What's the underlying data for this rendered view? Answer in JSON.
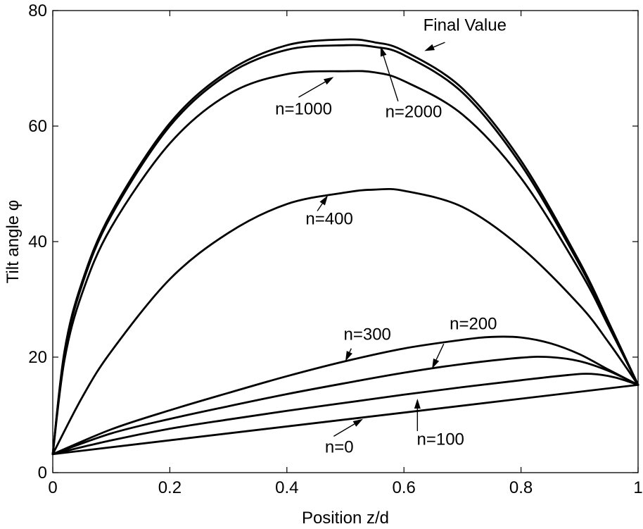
{
  "chart_data": {
    "type": "line",
    "title": "",
    "xlabel": "Position z/d",
    "ylabel": "Tilt angle φ",
    "xlim": [
      0,
      1
    ],
    "ylim": [
      0,
      80
    ],
    "xticks": [
      0,
      0.2,
      0.4,
      0.6,
      0.8,
      1
    ],
    "yticks": [
      0,
      20,
      40,
      60,
      80
    ],
    "xtick_labels": [
      "0",
      "0.2",
      "0.4",
      "0.6",
      "0.8",
      "1"
    ],
    "ytick_labels": [
      "0",
      "20",
      "40",
      "60",
      "80"
    ],
    "grid": false,
    "line_color": "#000000",
    "boundary": {
      "y_at_0": 3.2,
      "y_at_1": 15.2
    },
    "series": [
      {
        "key": "final",
        "x": [
          0,
          0.02,
          0.05,
          0.1,
          0.2,
          0.3,
          0.4,
          0.5,
          0.55,
          0.6,
          0.7,
          0.8,
          0.9,
          0.95,
          1
        ],
        "values": [
          3.2,
          21,
          33,
          45,
          60.5,
          69.5,
          74,
          75,
          74.5,
          73,
          66.5,
          54,
          36.5,
          26,
          15.2
        ]
      },
      {
        "key": "n2000",
        "x": [
          0,
          0.02,
          0.05,
          0.1,
          0.2,
          0.3,
          0.4,
          0.5,
          0.55,
          0.6,
          0.7,
          0.8,
          0.9,
          0.95,
          1
        ],
        "values": [
          3.2,
          20.5,
          32.5,
          44.5,
          60,
          69,
          73.2,
          74,
          73.7,
          72.3,
          65.8,
          53.3,
          36,
          25.8,
          15.2
        ]
      },
      {
        "key": "n1000",
        "x": [
          0,
          0.02,
          0.05,
          0.1,
          0.2,
          0.3,
          0.4,
          0.5,
          0.55,
          0.6,
          0.7,
          0.8,
          0.9,
          0.95,
          1
        ],
        "values": [
          3.2,
          19.5,
          31,
          42.5,
          57,
          65.5,
          69,
          69.5,
          69.3,
          67.8,
          62,
          51,
          35,
          25.3,
          15.2
        ]
      },
      {
        "key": "n400",
        "x": [
          0,
          0.05,
          0.1,
          0.2,
          0.3,
          0.4,
          0.5,
          0.55,
          0.6,
          0.7,
          0.8,
          0.9,
          0.95,
          1
        ],
        "values": [
          3.2,
          13,
          21,
          33.5,
          41.5,
          46.5,
          48.5,
          49,
          48.8,
          46,
          39,
          29,
          22.5,
          15.2
        ]
      },
      {
        "key": "n300",
        "x": [
          0,
          0.1,
          0.2,
          0.3,
          0.4,
          0.5,
          0.6,
          0.7,
          0.75,
          0.8,
          0.85,
          0.9,
          0.95,
          1
        ],
        "values": [
          3.2,
          7.5,
          10.8,
          13.8,
          16.7,
          19.3,
          21.5,
          23,
          23.5,
          23.4,
          22.4,
          20.5,
          17.8,
          15.2
        ]
      },
      {
        "key": "n200",
        "x": [
          0,
          0.1,
          0.2,
          0.3,
          0.4,
          0.5,
          0.6,
          0.7,
          0.8,
          0.85,
          0.9,
          0.95,
          1
        ],
        "values": [
          3.2,
          6.8,
          9.3,
          11.5,
          13.6,
          15.5,
          17.3,
          18.8,
          19.9,
          20,
          19.3,
          17.6,
          15.2
        ]
      },
      {
        "key": "n100",
        "x": [
          0,
          0.1,
          0.2,
          0.3,
          0.4,
          0.5,
          0.6,
          0.7,
          0.8,
          0.88,
          0.92,
          0.96,
          1
        ],
        "values": [
          3.2,
          5.6,
          7.6,
          9.2,
          10.7,
          12.1,
          13.5,
          14.8,
          16,
          16.9,
          17.1,
          16.5,
          15.2
        ]
      },
      {
        "key": "n0",
        "x": [
          0,
          1
        ],
        "values": [
          3.2,
          15.2
        ]
      }
    ],
    "annotations": [
      {
        "key": "final",
        "text": "Final Value",
        "text_at": [
          0.633,
          76.5
        ],
        "arrow_from": [
          0.67,
          74.5
        ],
        "arrow_to": [
          0.635,
          73
        ]
      },
      {
        "key": "n2000",
        "text": "n=2000",
        "text_at": [
          0.568,
          61.5
        ],
        "arrow_from": [
          0.59,
          64.3
        ],
        "arrow_to": [
          0.56,
          73.8
        ]
      },
      {
        "key": "n1000",
        "text": "n=1000",
        "text_at": [
          0.38,
          62
        ],
        "arrow_from": [
          0.42,
          65
        ],
        "arrow_to": [
          0.48,
          68.5
        ]
      },
      {
        "key": "n400",
        "text": "n=400",
        "text_at": [
          0.432,
          43
        ],
        "arrow_from": [
          0.452,
          45.3
        ],
        "arrow_to": [
          0.47,
          48
        ]
      },
      {
        "key": "n300",
        "text": "n=300",
        "text_at": [
          0.497,
          23
        ],
        "arrow_from": [
          0.51,
          21.5
        ],
        "arrow_to": [
          0.5,
          19.3
        ]
      },
      {
        "key": "n200",
        "text": "n=200",
        "text_at": [
          0.678,
          24.8
        ],
        "arrow_from": [
          0.668,
          22.3
        ],
        "arrow_to": [
          0.648,
          18
        ]
      },
      {
        "key": "n100",
        "text": "n=100",
        "text_at": [
          0.622,
          4.8
        ],
        "arrow_from": [
          0.623,
          7.2
        ],
        "arrow_to": [
          0.623,
          12.8
        ]
      },
      {
        "key": "n0",
        "text": "n=0",
        "text_at": [
          0.465,
          3.5
        ],
        "arrow_from": [
          0.48,
          6.3
        ],
        "arrow_to": [
          0.53,
          9.3
        ]
      }
    ]
  }
}
